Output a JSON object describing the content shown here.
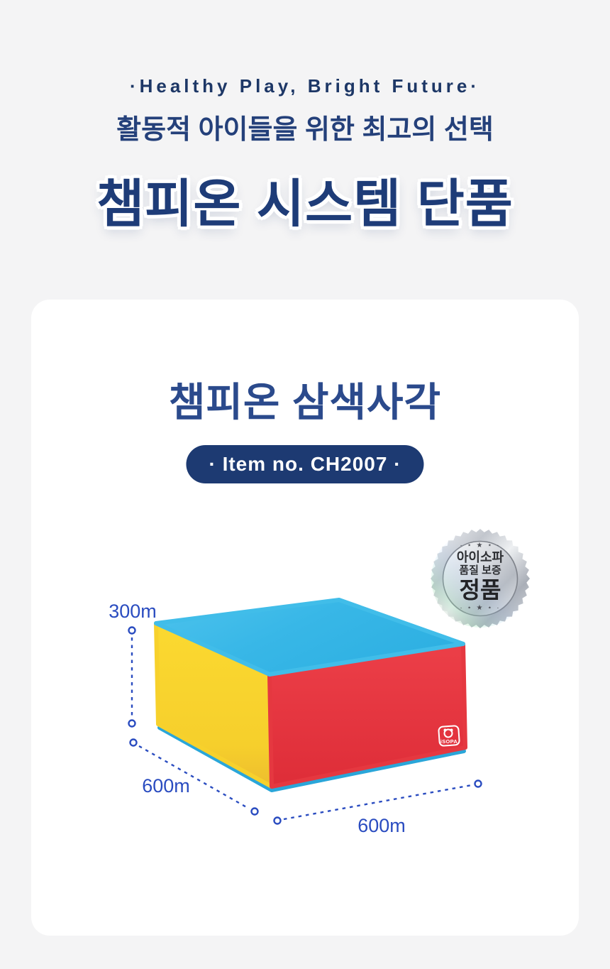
{
  "header": {
    "tagline": "·Healthy Play, Bright Future·",
    "subtitle": "활동적 아이들을 위한 최고의 선택",
    "title": "챔피온 시스템 단품"
  },
  "card": {
    "product_name": "챔피온 삼색사각",
    "item_no": "· Item no. CH2007 ·",
    "seal": {
      "stars_top": "· ⋆ ★ ⋆ ·",
      "line1": "아이소파",
      "line2": "품질 보증",
      "line3": "정품",
      "stars_bottom": "· ⋆ ★ ⋆ ·"
    },
    "figure": {
      "height_label": "300m",
      "depth_label": "600m",
      "width_label": "600m",
      "brand": "iSOPA"
    }
  },
  "colors": {
    "background": "#f4f4f5",
    "card_background": "#ffffff",
    "navy_title": "#1e3c78",
    "navy_subtitle": "#24407a",
    "product_title_navy": "#2b4a8c",
    "pill_background": "#1d3a72",
    "pill_text": "#ffffff",
    "dimension_blue": "#2a4cc0",
    "cube_top_blue": "#38b7e7",
    "cube_front_red": "#e7353e",
    "cube_side_yellow": "#f9d52c",
    "seal_silver": "#c9cdd4"
  }
}
